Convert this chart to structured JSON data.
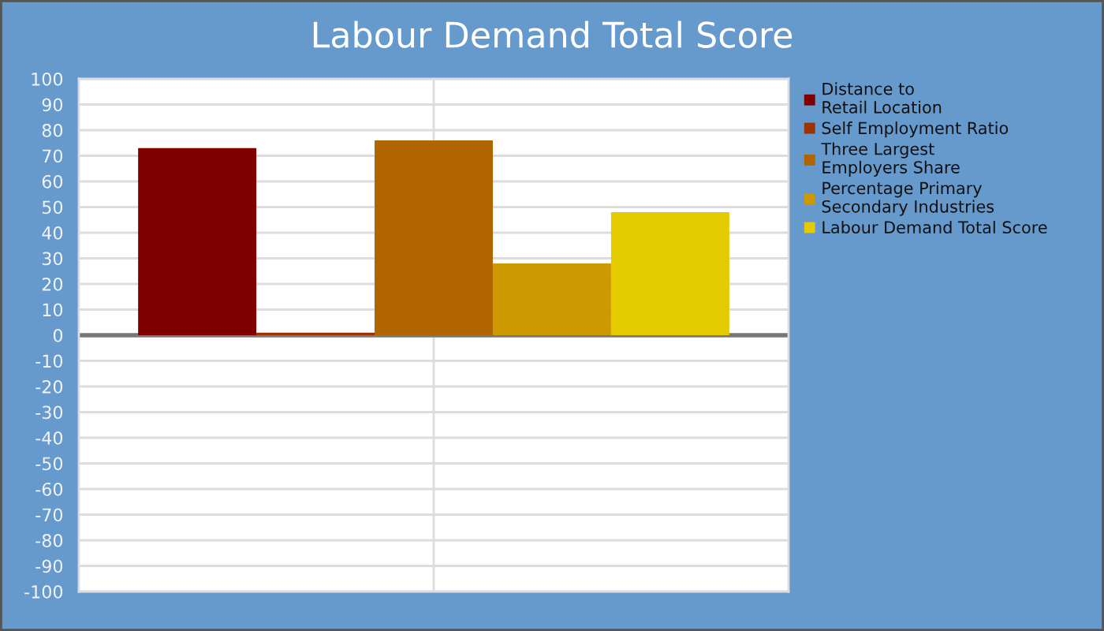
{
  "chart_data": {
    "type": "bar",
    "title": "Labour Demand Total Score",
    "categories": [
      null
    ],
    "series": [
      {
        "name": "Distance to\nRetail Location",
        "color": "#800000",
        "values": [
          73
        ]
      },
      {
        "name": "Self Employment Ratio",
        "color": "#9c3300",
        "values": [
          1
        ]
      },
      {
        "name": "Three Largest\nEmployers Share",
        "color": "#b06500",
        "values": [
          76
        ]
      },
      {
        "name": "Percentage Primary\nSecondary Industries",
        "color": "#cc9900",
        "values": [
          28
        ]
      },
      {
        "name": "Labour Demand Total Score",
        "color": "#e3cb00",
        "values": [
          48
        ]
      }
    ],
    "ylim": [
      -100,
      100
    ],
    "yticks": [
      -100,
      -90,
      -80,
      -70,
      -60,
      -50,
      -40,
      -30,
      -20,
      -10,
      0,
      10,
      20,
      30,
      40,
      50,
      60,
      70,
      80,
      90,
      100
    ],
    "grid": true,
    "legend": "right",
    "tick_labels": "y",
    "ref_lines": [
      {
        "axis": "y",
        "value": 0,
        "color": "#777777"
      }
    ]
  }
}
